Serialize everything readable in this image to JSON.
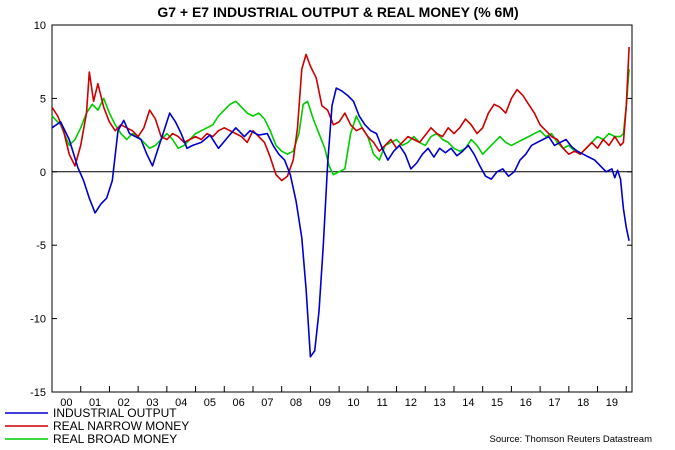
{
  "chart_data": {
    "type": "line",
    "title": "G7 + E7 INDUSTRIAL OUTPUT & REAL MONEY (% 6M)",
    "source": "Source: Thomson Reuters Datastream",
    "ylim": [
      -15,
      10
    ],
    "yticks": [
      10,
      5,
      0,
      -5,
      -10,
      -15
    ],
    "xlim": [
      2000,
      2020.2
    ],
    "xtick_labels": [
      "00",
      "01",
      "02",
      "03",
      "04",
      "05",
      "06",
      "07",
      "08",
      "09",
      "10",
      "11",
      "12",
      "13",
      "14",
      "15",
      "16",
      "17",
      "18",
      "19"
    ],
    "zero_line": true,
    "legend_position": "bottom-left",
    "series": [
      {
        "name": "INDUSTRIAL OUTPUT",
        "color": "#0000cc",
        "points": [
          [
            2000.0,
            3.0
          ],
          [
            2000.3,
            3.4
          ],
          [
            2000.6,
            2.2
          ],
          [
            2000.9,
            0.3
          ],
          [
            2001.1,
            -0.6
          ],
          [
            2001.3,
            -1.8
          ],
          [
            2001.5,
            -2.8
          ],
          [
            2001.7,
            -2.2
          ],
          [
            2001.9,
            -1.8
          ],
          [
            2002.1,
            -0.6
          ],
          [
            2002.3,
            2.8
          ],
          [
            2002.5,
            3.5
          ],
          [
            2002.7,
            2.6
          ],
          [
            2002.9,
            2.4
          ],
          [
            2003.1,
            2.2
          ],
          [
            2003.3,
            1.2
          ],
          [
            2003.5,
            0.4
          ],
          [
            2003.7,
            1.6
          ],
          [
            2003.9,
            2.8
          ],
          [
            2004.1,
            4.0
          ],
          [
            2004.3,
            3.4
          ],
          [
            2004.5,
            2.6
          ],
          [
            2004.7,
            1.6
          ],
          [
            2004.9,
            1.8
          ],
          [
            2005.2,
            2.0
          ],
          [
            2005.5,
            2.5
          ],
          [
            2005.8,
            1.6
          ],
          [
            2006.1,
            2.3
          ],
          [
            2006.4,
            3.0
          ],
          [
            2006.7,
            2.4
          ],
          [
            2006.9,
            2.8
          ],
          [
            2007.2,
            2.5
          ],
          [
            2007.5,
            2.6
          ],
          [
            2007.7,
            1.8
          ],
          [
            2007.9,
            1.2
          ],
          [
            2008.1,
            0.8
          ],
          [
            2008.3,
            -0.2
          ],
          [
            2008.5,
            -2.0
          ],
          [
            2008.7,
            -4.5
          ],
          [
            2008.85,
            -8.0
          ],
          [
            2009.0,
            -12.6
          ],
          [
            2009.15,
            -12.2
          ],
          [
            2009.3,
            -9.5
          ],
          [
            2009.45,
            -5.0
          ],
          [
            2009.6,
            0.5
          ],
          [
            2009.75,
            4.5
          ],
          [
            2009.9,
            5.7
          ],
          [
            2010.1,
            5.5
          ],
          [
            2010.3,
            5.2
          ],
          [
            2010.5,
            4.8
          ],
          [
            2010.7,
            3.8
          ],
          [
            2010.9,
            3.2
          ],
          [
            2011.1,
            2.8
          ],
          [
            2011.3,
            2.6
          ],
          [
            2011.5,
            1.6
          ],
          [
            2011.7,
            0.8
          ],
          [
            2011.9,
            1.4
          ],
          [
            2012.1,
            1.8
          ],
          [
            2012.3,
            1.2
          ],
          [
            2012.5,
            0.2
          ],
          [
            2012.7,
            0.6
          ],
          [
            2012.9,
            1.2
          ],
          [
            2013.1,
            1.6
          ],
          [
            2013.3,
            1.0
          ],
          [
            2013.5,
            1.6
          ],
          [
            2013.7,
            1.3
          ],
          [
            2013.9,
            1.6
          ],
          [
            2014.1,
            1.1
          ],
          [
            2014.3,
            1.4
          ],
          [
            2014.5,
            1.8
          ],
          [
            2014.7,
            1.2
          ],
          [
            2014.9,
            0.4
          ],
          [
            2015.1,
            -0.3
          ],
          [
            2015.3,
            -0.5
          ],
          [
            2015.5,
            0.0
          ],
          [
            2015.7,
            0.2
          ],
          [
            2015.9,
            -0.3
          ],
          [
            2016.1,
            0.0
          ],
          [
            2016.3,
            0.8
          ],
          [
            2016.5,
            1.2
          ],
          [
            2016.7,
            1.8
          ],
          [
            2016.9,
            2.0
          ],
          [
            2017.1,
            2.2
          ],
          [
            2017.3,
            2.4
          ],
          [
            2017.5,
            1.8
          ],
          [
            2017.7,
            2.0
          ],
          [
            2017.9,
            2.2
          ],
          [
            2018.1,
            1.7
          ],
          [
            2018.3,
            1.4
          ],
          [
            2018.5,
            1.2
          ],
          [
            2018.7,
            1.0
          ],
          [
            2018.9,
            0.8
          ],
          [
            2019.1,
            0.4
          ],
          [
            2019.3,
            0.0
          ],
          [
            2019.5,
            0.2
          ],
          [
            2019.6,
            -0.4
          ],
          [
            2019.7,
            0.1
          ],
          [
            2019.8,
            -0.5
          ],
          [
            2019.9,
            -2.5
          ],
          [
            2020.0,
            -3.8
          ],
          [
            2020.1,
            -4.7
          ]
        ]
      },
      {
        "name": "REAL NARROW MONEY",
        "color": "#cc0000",
        "points": [
          [
            2000.0,
            4.4
          ],
          [
            2000.2,
            3.8
          ],
          [
            2000.4,
            2.8
          ],
          [
            2000.6,
            1.2
          ],
          [
            2000.8,
            0.4
          ],
          [
            2001.0,
            1.8
          ],
          [
            2001.2,
            4.0
          ],
          [
            2001.3,
            6.8
          ],
          [
            2001.45,
            4.8
          ],
          [
            2001.6,
            6.0
          ],
          [
            2001.8,
            4.4
          ],
          [
            2002.0,
            3.4
          ],
          [
            2002.2,
            2.8
          ],
          [
            2002.4,
            3.2
          ],
          [
            2002.6,
            3.0
          ],
          [
            2002.8,
            2.8
          ],
          [
            2003.0,
            2.4
          ],
          [
            2003.2,
            3.0
          ],
          [
            2003.4,
            4.2
          ],
          [
            2003.6,
            3.6
          ],
          [
            2003.8,
            2.4
          ],
          [
            2004.0,
            2.2
          ],
          [
            2004.2,
            2.6
          ],
          [
            2004.4,
            2.4
          ],
          [
            2004.6,
            2.0
          ],
          [
            2004.8,
            2.2
          ],
          [
            2005.0,
            2.4
          ],
          [
            2005.2,
            2.2
          ],
          [
            2005.4,
            2.6
          ],
          [
            2005.6,
            2.4
          ],
          [
            2005.8,
            2.8
          ],
          [
            2006.0,
            3.0
          ],
          [
            2006.2,
            2.8
          ],
          [
            2006.4,
            2.6
          ],
          [
            2006.6,
            2.4
          ],
          [
            2006.8,
            2.0
          ],
          [
            2007.0,
            2.8
          ],
          [
            2007.2,
            2.4
          ],
          [
            2007.4,
            2.0
          ],
          [
            2007.6,
            1.0
          ],
          [
            2007.8,
            -0.2
          ],
          [
            2008.0,
            -0.6
          ],
          [
            2008.2,
            -0.3
          ],
          [
            2008.4,
            0.8
          ],
          [
            2008.55,
            3.0
          ],
          [
            2008.7,
            7.0
          ],
          [
            2008.85,
            8.0
          ],
          [
            2009.0,
            7.2
          ],
          [
            2009.2,
            6.4
          ],
          [
            2009.4,
            4.5
          ],
          [
            2009.6,
            4.2
          ],
          [
            2009.8,
            3.2
          ],
          [
            2010.0,
            3.4
          ],
          [
            2010.2,
            4.0
          ],
          [
            2010.4,
            3.2
          ],
          [
            2010.6,
            2.8
          ],
          [
            2010.8,
            3.0
          ],
          [
            2011.0,
            2.4
          ],
          [
            2011.2,
            2.0
          ],
          [
            2011.4,
            1.4
          ],
          [
            2011.6,
            1.8
          ],
          [
            2011.8,
            2.2
          ],
          [
            2012.0,
            1.6
          ],
          [
            2012.2,
            2.0
          ],
          [
            2012.4,
            2.4
          ],
          [
            2012.6,
            2.2
          ],
          [
            2012.8,
            2.0
          ],
          [
            2013.0,
            2.5
          ],
          [
            2013.2,
            3.0
          ],
          [
            2013.4,
            2.6
          ],
          [
            2013.6,
            2.4
          ],
          [
            2013.8,
            3.0
          ],
          [
            2014.0,
            2.6
          ],
          [
            2014.2,
            3.0
          ],
          [
            2014.4,
            3.6
          ],
          [
            2014.6,
            3.2
          ],
          [
            2014.8,
            2.6
          ],
          [
            2015.0,
            3.0
          ],
          [
            2015.2,
            4.0
          ],
          [
            2015.4,
            4.6
          ],
          [
            2015.6,
            4.4
          ],
          [
            2015.8,
            4.0
          ],
          [
            2016.0,
            5.0
          ],
          [
            2016.2,
            5.6
          ],
          [
            2016.4,
            5.2
          ],
          [
            2016.6,
            4.6
          ],
          [
            2016.8,
            4.0
          ],
          [
            2017.0,
            3.2
          ],
          [
            2017.2,
            2.8
          ],
          [
            2017.4,
            2.4
          ],
          [
            2017.6,
            2.2
          ],
          [
            2017.8,
            1.6
          ],
          [
            2018.0,
            1.2
          ],
          [
            2018.2,
            1.4
          ],
          [
            2018.4,
            1.2
          ],
          [
            2018.6,
            1.6
          ],
          [
            2018.8,
            2.0
          ],
          [
            2019.0,
            1.6
          ],
          [
            2019.2,
            2.2
          ],
          [
            2019.4,
            1.8
          ],
          [
            2019.6,
            2.4
          ],
          [
            2019.8,
            1.8
          ],
          [
            2019.9,
            2.0
          ],
          [
            2020.0,
            4.5
          ],
          [
            2020.1,
            8.5
          ]
        ]
      },
      {
        "name": "REAL BROAD MONEY",
        "color": "#00cc00",
        "points": [
          [
            2000.0,
            3.8
          ],
          [
            2000.3,
            3.2
          ],
          [
            2000.6,
            1.8
          ],
          [
            2000.8,
            2.2
          ],
          [
            2001.0,
            3.0
          ],
          [
            2001.2,
            4.0
          ],
          [
            2001.4,
            4.6
          ],
          [
            2001.6,
            4.2
          ],
          [
            2001.8,
            5.0
          ],
          [
            2002.0,
            4.0
          ],
          [
            2002.2,
            3.2
          ],
          [
            2002.4,
            2.6
          ],
          [
            2002.6,
            2.2
          ],
          [
            2002.8,
            2.6
          ],
          [
            2003.0,
            2.4
          ],
          [
            2003.2,
            2.0
          ],
          [
            2003.4,
            1.6
          ],
          [
            2003.6,
            1.8
          ],
          [
            2003.8,
            2.2
          ],
          [
            2004.0,
            2.6
          ],
          [
            2004.2,
            2.2
          ],
          [
            2004.4,
            1.6
          ],
          [
            2004.6,
            1.8
          ],
          [
            2004.8,
            2.2
          ],
          [
            2005.0,
            2.6
          ],
          [
            2005.2,
            2.8
          ],
          [
            2005.4,
            3.0
          ],
          [
            2005.6,
            3.2
          ],
          [
            2005.8,
            3.8
          ],
          [
            2006.0,
            4.2
          ],
          [
            2006.2,
            4.6
          ],
          [
            2006.4,
            4.8
          ],
          [
            2006.6,
            4.4
          ],
          [
            2006.8,
            4.0
          ],
          [
            2007.0,
            3.8
          ],
          [
            2007.2,
            4.0
          ],
          [
            2007.4,
            3.6
          ],
          [
            2007.6,
            2.8
          ],
          [
            2007.8,
            1.8
          ],
          [
            2008.0,
            1.4
          ],
          [
            2008.2,
            1.2
          ],
          [
            2008.4,
            1.4
          ],
          [
            2008.6,
            2.6
          ],
          [
            2008.75,
            4.6
          ],
          [
            2008.9,
            4.8
          ],
          [
            2009.1,
            3.6
          ],
          [
            2009.3,
            2.6
          ],
          [
            2009.5,
            1.6
          ],
          [
            2009.65,
            0.4
          ],
          [
            2009.8,
            -0.2
          ],
          [
            2010.0,
            0.0
          ],
          [
            2010.2,
            0.2
          ],
          [
            2010.4,
            2.6
          ],
          [
            2010.6,
            3.8
          ],
          [
            2010.8,
            3.0
          ],
          [
            2011.0,
            2.4
          ],
          [
            2011.2,
            1.2
          ],
          [
            2011.4,
            0.8
          ],
          [
            2011.6,
            1.8
          ],
          [
            2011.8,
            2.0
          ],
          [
            2012.0,
            2.2
          ],
          [
            2012.2,
            1.8
          ],
          [
            2012.4,
            2.0
          ],
          [
            2012.6,
            2.4
          ],
          [
            2012.8,
            2.0
          ],
          [
            2013.0,
            1.8
          ],
          [
            2013.2,
            2.4
          ],
          [
            2013.4,
            2.6
          ],
          [
            2013.6,
            2.2
          ],
          [
            2013.8,
            2.0
          ],
          [
            2014.0,
            1.6
          ],
          [
            2014.2,
            1.4
          ],
          [
            2014.4,
            1.6
          ],
          [
            2014.6,
            2.2
          ],
          [
            2014.8,
            1.8
          ],
          [
            2015.0,
            1.2
          ],
          [
            2015.2,
            1.6
          ],
          [
            2015.4,
            2.0
          ],
          [
            2015.6,
            2.4
          ],
          [
            2015.8,
            2.0
          ],
          [
            2016.0,
            1.8
          ],
          [
            2016.2,
            2.0
          ],
          [
            2016.4,
            2.2
          ],
          [
            2016.6,
            2.4
          ],
          [
            2016.8,
            2.6
          ],
          [
            2017.0,
            2.8
          ],
          [
            2017.2,
            2.4
          ],
          [
            2017.4,
            2.6
          ],
          [
            2017.6,
            2.0
          ],
          [
            2017.8,
            1.6
          ],
          [
            2018.0,
            1.8
          ],
          [
            2018.2,
            1.4
          ],
          [
            2018.4,
            1.2
          ],
          [
            2018.6,
            1.6
          ],
          [
            2018.8,
            2.0
          ],
          [
            2019.0,
            2.4
          ],
          [
            2019.2,
            2.2
          ],
          [
            2019.4,
            2.6
          ],
          [
            2019.6,
            2.4
          ],
          [
            2019.8,
            2.4
          ],
          [
            2019.9,
            2.6
          ],
          [
            2020.0,
            4.5
          ],
          [
            2020.1,
            7.0
          ]
        ]
      }
    ]
  }
}
